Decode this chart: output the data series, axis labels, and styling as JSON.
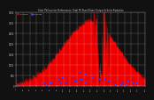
{
  "title": "Solar PV/Inverter Performance  Total PV Panel Power Output & Solar Radiation",
  "bg_color": "#111111",
  "plot_bg": "#111111",
  "grid_color": "#ffffff",
  "bar_color": "#ee0000",
  "dot_color": "#4444ff",
  "n_points": 288,
  "y_max": 3500,
  "y_ticks": [
    0,
    500,
    1000,
    1500,
    2000,
    2500,
    3000,
    3500
  ],
  "legend_pv_color": "#cc0000",
  "legend_rad_color": "#4444ff",
  "title_color": "#cccccc",
  "tick_color": "#cccccc"
}
